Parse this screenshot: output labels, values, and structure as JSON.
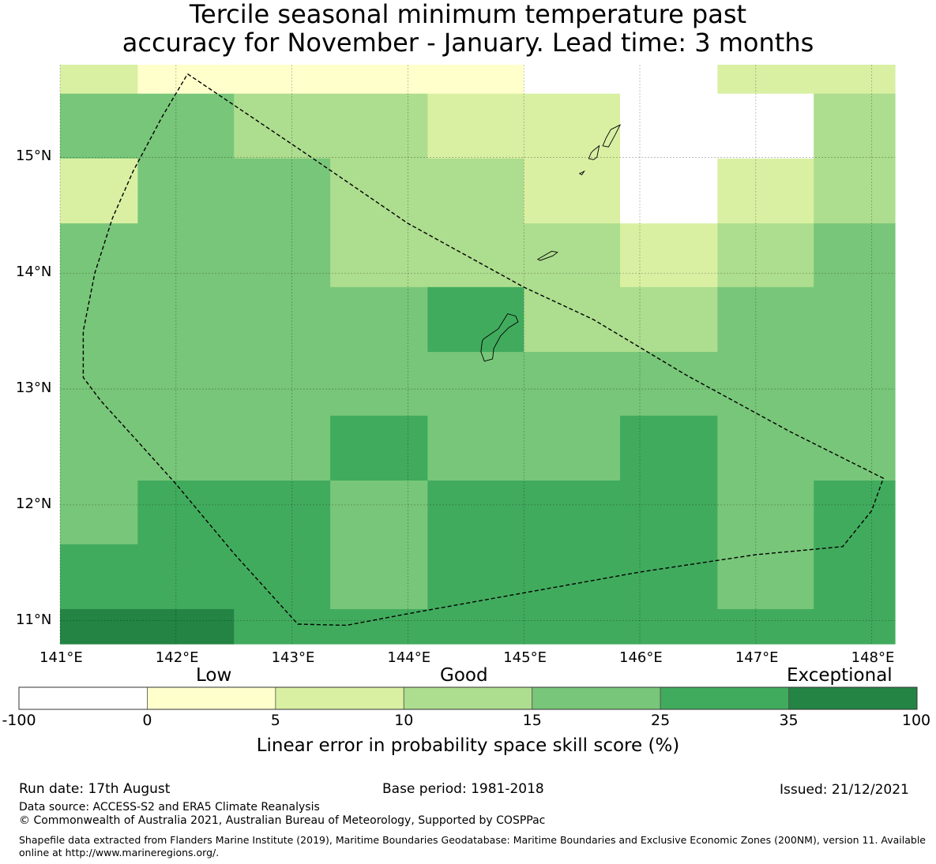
{
  "title": {
    "line1": "Tercile seasonal minimum temperature past",
    "line2": "accuracy for November - January. Lead time: 3 months"
  },
  "map": {
    "lon_range": [
      141.0,
      148.2
    ],
    "lat_range": [
      10.8,
      15.8
    ],
    "x_ticks": [
      "141°E",
      "142°E",
      "143°E",
      "144°E",
      "145°E",
      "146°E",
      "147°E",
      "148°E"
    ],
    "y_ticks": [
      "15°N",
      "14°N",
      "13°N",
      "12°N",
      "11°N"
    ],
    "grid": true,
    "cell_edges_lon": [
      141.0,
      141.67,
      142.5,
      143.33,
      144.17,
      145.0,
      145.83,
      146.67,
      147.5,
      148.2
    ],
    "cell_edges_lat": [
      15.8,
      15.55,
      14.99,
      14.43,
      13.88,
      13.32,
      12.77,
      12.21,
      11.66,
      11.1,
      10.8
    ],
    "skill_class_grid": [
      [
        2,
        1,
        1,
        1,
        1,
        0,
        0,
        2,
        2
      ],
      [
        4,
        4,
        3,
        3,
        2,
        2,
        0,
        0,
        3
      ],
      [
        2,
        4,
        4,
        3,
        3,
        2,
        0,
        2,
        3
      ],
      [
        4,
        4,
        4,
        3,
        3,
        3,
        2,
        3,
        4
      ],
      [
        4,
        4,
        4,
        4,
        5,
        3,
        3,
        4,
        4
      ],
      [
        4,
        4,
        4,
        4,
        4,
        4,
        4,
        4,
        4
      ],
      [
        4,
        4,
        4,
        5,
        4,
        4,
        5,
        4,
        4
      ],
      [
        4,
        5,
        5,
        4,
        5,
        5,
        5,
        4,
        5
      ],
      [
        5,
        5,
        5,
        4,
        5,
        5,
        5,
        4,
        5
      ],
      [
        6,
        6,
        5,
        5,
        5,
        5,
        5,
        5,
        5
      ]
    ],
    "eez_boundary": [
      [
        142.1,
        15.72
      ],
      [
        143.05,
        15.08
      ],
      [
        144.0,
        14.43
      ],
      [
        145.0,
        13.88
      ],
      [
        145.6,
        13.6
      ],
      [
        146.4,
        13.12
      ],
      [
        147.3,
        12.63
      ],
      [
        148.1,
        12.23
      ],
      [
        148.0,
        11.95
      ],
      [
        147.75,
        11.64
      ],
      [
        147.0,
        11.57
      ],
      [
        146.0,
        11.42
      ],
      [
        145.0,
        11.24
      ],
      [
        144.0,
        11.06
      ],
      [
        143.47,
        10.96
      ],
      [
        143.05,
        10.97
      ],
      [
        142.5,
        11.58
      ],
      [
        142.0,
        12.18
      ],
      [
        141.65,
        12.57
      ],
      [
        141.35,
        12.9
      ],
      [
        141.2,
        13.1
      ],
      [
        141.2,
        13.5
      ],
      [
        141.3,
        14.0
      ],
      [
        141.45,
        14.47
      ],
      [
        141.63,
        14.88
      ],
      [
        141.88,
        15.35
      ],
      [
        142.1,
        15.72
      ]
    ],
    "islands": [
      [
        [
          145.75,
          15.24
        ],
        [
          145.83,
          15.28
        ],
        [
          145.79,
          15.2
        ],
        [
          145.73,
          15.09
        ],
        [
          145.68,
          15.1
        ],
        [
          145.71,
          15.17
        ],
        [
          145.75,
          15.24
        ]
      ],
      [
        [
          145.6,
          15.06
        ],
        [
          145.65,
          15.1
        ],
        [
          145.63,
          15.0
        ],
        [
          145.6,
          14.98
        ],
        [
          145.56,
          14.99
        ],
        [
          145.58,
          15.04
        ],
        [
          145.6,
          15.06
        ]
      ],
      [
        [
          145.48,
          14.86
        ],
        [
          145.52,
          14.88
        ],
        [
          145.5,
          14.85
        ],
        [
          145.48,
          14.86
        ]
      ],
      [
        [
          145.12,
          14.12
        ],
        [
          145.24,
          14.19
        ],
        [
          145.29,
          14.18
        ],
        [
          145.25,
          14.15
        ],
        [
          145.14,
          14.11
        ],
        [
          145.12,
          14.12
        ]
      ],
      [
        [
          144.65,
          13.43
        ],
        [
          144.78,
          13.52
        ],
        [
          144.86,
          13.65
        ],
        [
          144.93,
          13.63
        ],
        [
          144.95,
          13.58
        ],
        [
          144.87,
          13.53
        ],
        [
          144.8,
          13.46
        ],
        [
          144.74,
          13.35
        ],
        [
          144.73,
          13.26
        ],
        [
          144.66,
          13.24
        ],
        [
          144.63,
          13.32
        ],
        [
          144.64,
          13.41
        ],
        [
          144.65,
          13.43
        ]
      ]
    ]
  },
  "colorbar": {
    "categories": [
      {
        "label": "Low"
      },
      {
        "label": "Good"
      },
      {
        "label": "Exceptional"
      }
    ],
    "boundaries": [
      "-100",
      "0",
      "5",
      "10",
      "15",
      "25",
      "35",
      "100"
    ],
    "colors": [
      "#ffffff",
      "#ffffcc",
      "#d9f0a3",
      "#addd8e",
      "#78c679",
      "#41ab5d",
      "#238443"
    ],
    "title": "Linear error in probability space skill score (%)"
  },
  "footer": {
    "run_date": "Run date: 17th August",
    "base_period": "Base period: 1981-2018",
    "issued": "Issued: 21/12/2021",
    "data_source": "Data source: ACCESS-S2 and ERA5 Climate Reanalysis",
    "copyright": "© Commonwealth of Australia 2021, Australian Bureau of Meteorology, Supported by COSPPac",
    "shapefile": "Shapefile data extracted from Flanders Marine Institute (2019), Maritime Boundaries Geodatabase: Maritime Boundaries and Exclusive Economic Zones (200NM), version 11. Available online at http://www.marineregions.org/."
  }
}
